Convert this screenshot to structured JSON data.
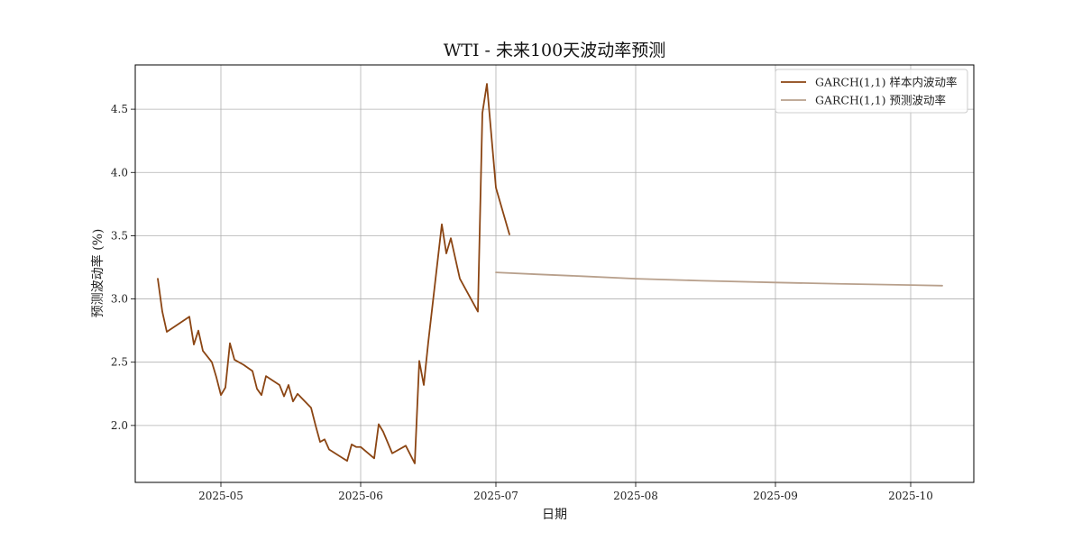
{
  "chart_data": {
    "type": "line",
    "title": "WTI - 未来100天波动率预测",
    "xlabel": "日期",
    "ylabel": "预测波动率 (%)",
    "xlim": [
      "2025-04-12",
      "2025-10-15"
    ],
    "ylim": [
      1.55,
      4.85
    ],
    "x_ticks": [
      "2025-05-01",
      "2025-06-01",
      "2025-07-01",
      "2025-08-01",
      "2025-09-01",
      "2025-10-01"
    ],
    "x_tick_labels": [
      "2025-05",
      "2025-06",
      "2025-07",
      "2025-08",
      "2025-09",
      "2025-10"
    ],
    "y_ticks": [
      2.0,
      2.5,
      3.0,
      3.5,
      4.0,
      4.5
    ],
    "y_tick_labels": [
      "2.0",
      "2.5",
      "3.0",
      "3.5",
      "4.0",
      "4.5"
    ],
    "grid": true,
    "legend_position": "top-right",
    "colors": {
      "in_sample": "#8B4513",
      "forecast": "#B8A08C"
    },
    "series": [
      {
        "name": "GARCH(1,1) 样本内波动率",
        "points": [
          [
            "2025-04-17",
            3.16
          ],
          [
            "2025-04-18",
            2.9
          ],
          [
            "2025-04-19",
            2.74
          ],
          [
            "2025-04-24",
            2.86
          ],
          [
            "2025-04-25",
            2.64
          ],
          [
            "2025-04-26",
            2.75
          ],
          [
            "2025-04-27",
            2.59
          ],
          [
            "2025-04-29",
            2.5
          ],
          [
            "2025-04-30",
            2.38
          ],
          [
            "2025-05-01",
            2.24
          ],
          [
            "2025-05-02",
            2.3
          ],
          [
            "2025-05-03",
            2.65
          ],
          [
            "2025-05-04",
            2.52
          ],
          [
            "2025-05-06",
            2.48
          ],
          [
            "2025-05-08",
            2.43
          ],
          [
            "2025-05-09",
            2.29
          ],
          [
            "2025-05-10",
            2.24
          ],
          [
            "2025-05-11",
            2.39
          ],
          [
            "2025-05-14",
            2.32
          ],
          [
            "2025-05-15",
            2.23
          ],
          [
            "2025-05-16",
            2.32
          ],
          [
            "2025-05-17",
            2.19
          ],
          [
            "2025-05-18",
            2.25
          ],
          [
            "2025-05-21",
            2.14
          ],
          [
            "2025-05-22",
            2.0
          ],
          [
            "2025-05-23",
            1.87
          ],
          [
            "2025-05-24",
            1.89
          ],
          [
            "2025-05-25",
            1.81
          ],
          [
            "2025-05-29",
            1.72
          ],
          [
            "2025-05-30",
            1.85
          ],
          [
            "2025-05-31",
            1.83
          ],
          [
            "2025-06-01",
            1.83
          ],
          [
            "2025-06-04",
            1.74
          ],
          [
            "2025-06-05",
            2.01
          ],
          [
            "2025-06-06",
            1.95
          ],
          [
            "2025-06-08",
            1.78
          ],
          [
            "2025-06-11",
            1.84
          ],
          [
            "2025-06-13",
            1.7
          ],
          [
            "2025-06-14",
            2.51
          ],
          [
            "2025-06-15",
            2.32
          ],
          [
            "2025-06-16",
            2.66
          ],
          [
            "2025-06-19",
            3.59
          ],
          [
            "2025-06-20",
            3.36
          ],
          [
            "2025-06-21",
            3.48
          ],
          [
            "2025-06-23",
            3.16
          ],
          [
            "2025-06-27",
            2.9
          ],
          [
            "2025-06-28",
            4.47
          ],
          [
            "2025-06-29",
            4.7
          ],
          [
            "2025-07-01",
            3.88
          ],
          [
            "2025-07-04",
            3.51
          ]
        ]
      },
      {
        "name": "GARCH(1,1) 预测波动率",
        "points": [
          [
            "2025-07-01",
            3.21
          ],
          [
            "2025-07-10",
            3.195
          ],
          [
            "2025-07-20",
            3.18
          ],
          [
            "2025-08-01",
            3.16
          ],
          [
            "2025-08-15",
            3.145
          ],
          [
            "2025-09-01",
            3.13
          ],
          [
            "2025-09-15",
            3.12
          ],
          [
            "2025-10-01",
            3.11
          ],
          [
            "2025-10-08",
            3.105
          ]
        ]
      }
    ]
  }
}
